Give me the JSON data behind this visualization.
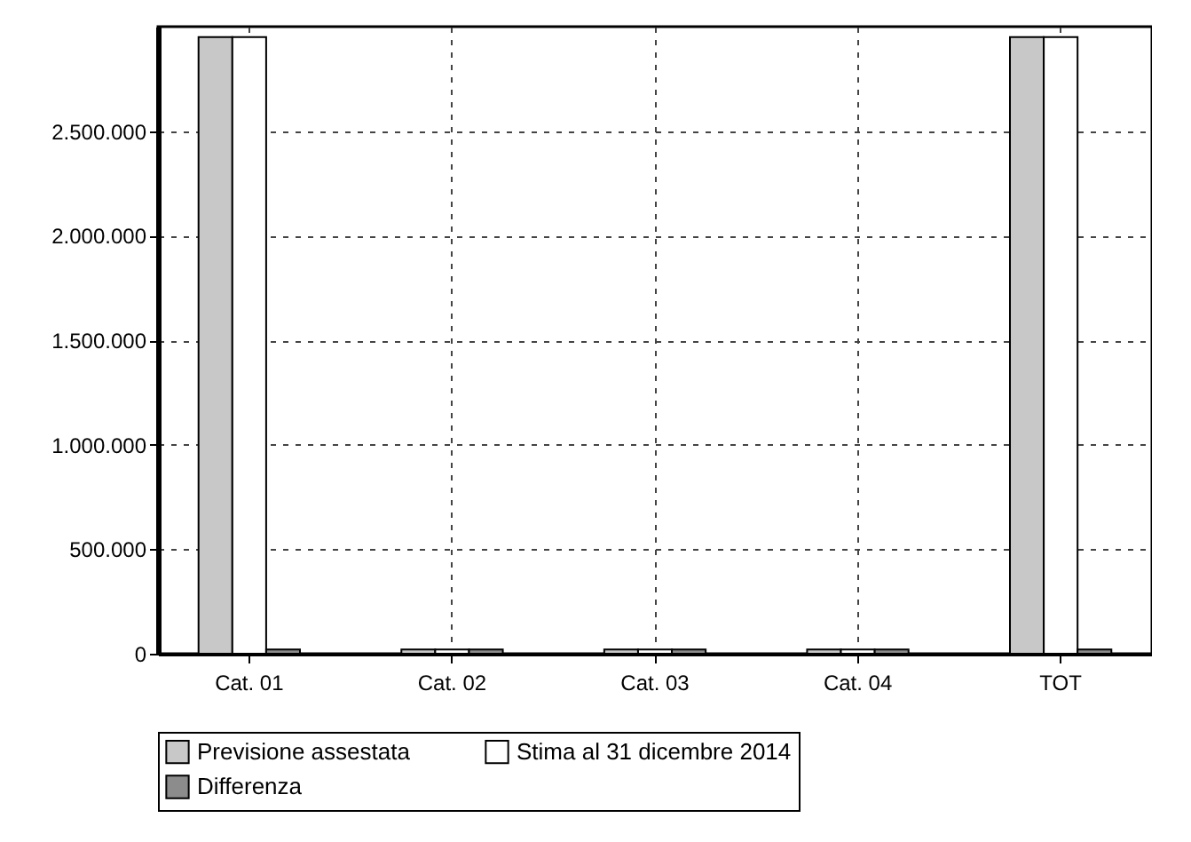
{
  "chart_data": {
    "type": "bar",
    "categories": [
      "Cat. 01",
      "Cat. 02",
      "Cat. 03",
      "Cat. 04",
      "TOT"
    ],
    "series": [
      {
        "name": "Previsione assestata",
        "color": "#c8c8c8",
        "values": [
          2950000,
          20000,
          20000,
          20000,
          2950000
        ]
      },
      {
        "name": "Stima al 31 dicembre 2014",
        "color": "#ffffff",
        "values": [
          2950000,
          20000,
          20000,
          20000,
          2950000
        ]
      },
      {
        "name": "Differenza",
        "color": "#8c8c8c",
        "values": [
          20000,
          20000,
          20000,
          20000,
          20000
        ]
      }
    ],
    "ylim": [
      0,
      3000000
    ],
    "yticks": [
      0,
      {
        "value": 500000,
        "label": "500.000"
      },
      {
        "value": 1000000,
        "label": "1.000.000"
      },
      {
        "value": 1500000,
        "label": "1.500.000"
      },
      {
        "value": 2000000,
        "label": "2.000.000"
      },
      {
        "value": 2500000,
        "label": "2.500.000"
      }
    ],
    "grid": true,
    "legend": "bottom"
  }
}
